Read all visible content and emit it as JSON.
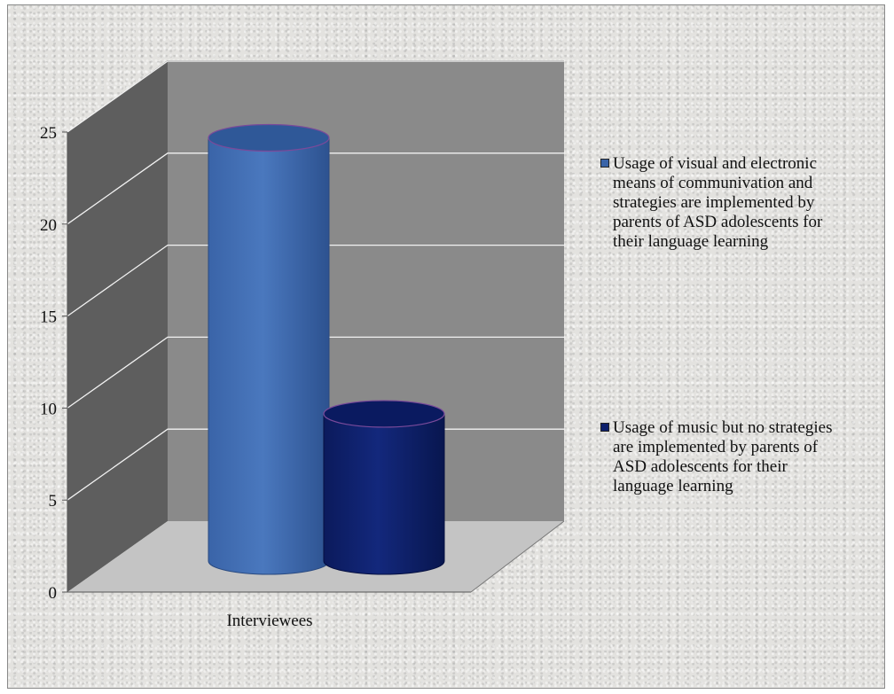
{
  "chart_data": {
    "type": "bar",
    "categories": [
      "Interviewees"
    ],
    "series": [
      {
        "name": "Usage of visual and electronic means of communivation and strategies are implemented by parents of ASD adolescents for their language learning",
        "values": [
          23
        ],
        "color": "#3a64a8"
      },
      {
        "name": "Usage of music but no strategies  are implemented by parents of ASD adolescents for their language learning",
        "values": [
          8
        ],
        "color": "#0d1f6b"
      }
    ],
    "yticks": [
      0,
      5,
      10,
      15,
      20,
      25
    ],
    "ylim": [
      0,
      25
    ],
    "grid": true,
    "legend_position": "right",
    "style": "3d-cylinder"
  }
}
